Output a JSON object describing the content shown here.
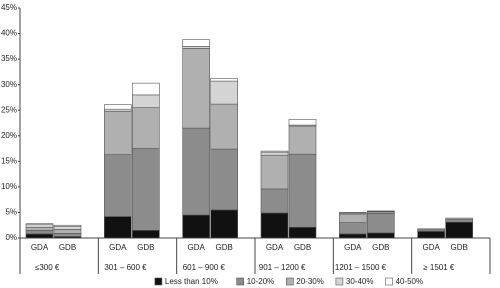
{
  "chart_data": {
    "type": "stacked-bar",
    "groups": [
      "≤300 €",
      "301 – 600 €",
      "601 – 900 €",
      "901 – 1200 €",
      "1201 – 1500 €",
      "≥ 1501 €"
    ],
    "categories": [
      "GDA",
      "GDB",
      "GDA",
      "GDB",
      "GDA",
      "GDB",
      "GDA",
      "GDB",
      "GDA",
      "GDB",
      "GDA",
      "GDB"
    ],
    "series": [
      {
        "name": "Less than 10%",
        "color": "#111111",
        "values": [
          0.8,
          0.3,
          4.2,
          1.5,
          4.5,
          5.5,
          4.9,
          2.1,
          0.8,
          1.0,
          1.3,
          3.1
        ]
      },
      {
        "name": "10-20%",
        "color": "#8c8c8c",
        "values": [
          0.7,
          0.6,
          12.1,
          16.0,
          17.0,
          11.9,
          4.7,
          14.3,
          2.2,
          3.8,
          0.3,
          0.5
        ]
      },
      {
        "name": "20-30%",
        "color": "#b0b0b0",
        "values": [
          0.6,
          0.8,
          8.5,
          8.0,
          15.6,
          8.8,
          6.6,
          5.5,
          1.7,
          0.3,
          0.2,
          0.3
        ]
      },
      {
        "name": "30-40%",
        "color": "#d4d4d4",
        "values": [
          0.5,
          0.6,
          0.4,
          2.5,
          0.4,
          4.5,
          0.6,
          0.2,
          0.2,
          0.1,
          0,
          0
        ]
      },
      {
        "name": "40-50%",
        "color": "#ffffff",
        "values": [
          0.2,
          0.2,
          0.9,
          2.3,
          1.3,
          0.5,
          0.2,
          1.1,
          0.1,
          0.1,
          0,
          0
        ]
      }
    ],
    "ylim": [
      0,
      45
    ],
    "yticks": [
      {
        "value": 0,
        "label": "0%"
      },
      {
        "value": 5,
        "label": "5%"
      },
      {
        "value": 10,
        "label": "10%"
      },
      {
        "value": 15,
        "label": "15%"
      },
      {
        "value": 20,
        "label": "20%"
      },
      {
        "value": 25,
        "label": "25%"
      },
      {
        "value": 30,
        "label": "30%"
      },
      {
        "value": 35,
        "label": "35%"
      },
      {
        "value": 40,
        "label": "40%"
      },
      {
        "value": 45,
        "label": "45%"
      }
    ],
    "legend": "bottom"
  }
}
